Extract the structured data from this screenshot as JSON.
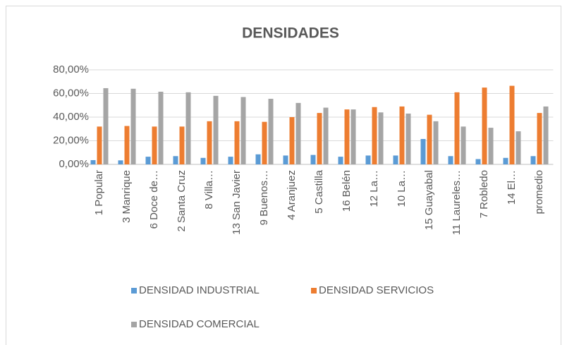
{
  "chart_data": {
    "type": "bar",
    "title": "DENSIDADES",
    "categories": [
      "1 Popular",
      "3 Manrique",
      "6 Doce de…",
      "2 Santa Cruz",
      "8 Villa…",
      "13 San Javier",
      "9 Buenos…",
      "4 Aranjuez",
      "5 Castilla",
      "16 Belén",
      "12 La…",
      "10 La…",
      "15 Guayabal",
      "11 Laureles…",
      "7 Robledo",
      "14 El…",
      "promedio"
    ],
    "series": [
      {
        "name": "DENSIDAD INDUSTRIAL",
        "color": "#5b9bd5",
        "values": [
          3.6,
          3.4,
          6.5,
          7,
          5.5,
          6.5,
          8.5,
          7.5,
          8,
          6.5,
          7.5,
          7.5,
          21.5,
          7,
          4.5,
          5.5,
          7
        ]
      },
      {
        "name": "DENSIDAD SERVICIOS",
        "color": "#ed7d31",
        "values": [
          32,
          32.5,
          32,
          32,
          36.5,
          36.5,
          36,
          40,
          43.5,
          46.5,
          48.5,
          49,
          42,
          61,
          65,
          66.5,
          43.5
        ]
      },
      {
        "name": "DENSIDAD COMERCIAL",
        "color": "#a5a5a5",
        "values": [
          64.5,
          64,
          61.5,
          61,
          58,
          57,
          55.5,
          52,
          48,
          46.5,
          44,
          43,
          36.5,
          32,
          31,
          28,
          49
        ]
      }
    ],
    "ylim": [
      0,
      80
    ],
    "yticks": [
      {
        "value": 0,
        "label": "0,00%"
      },
      {
        "value": 20,
        "label": "20,00%"
      },
      {
        "value": 40,
        "label": "40,00%"
      },
      {
        "value": 60,
        "label": "60,00%"
      },
      {
        "value": 80,
        "label": "80,00%"
      }
    ],
    "grid": true,
    "legend": "bottom"
  }
}
